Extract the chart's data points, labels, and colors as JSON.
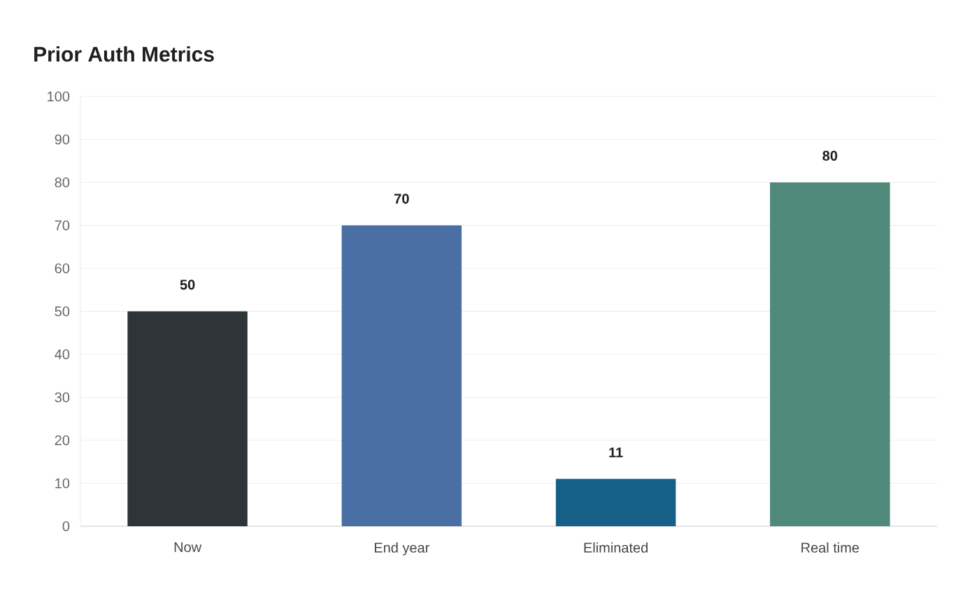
{
  "chart_data": {
    "type": "bar",
    "title": "Prior Auth Metrics",
    "categories": [
      "Now",
      "End year",
      "Eliminated",
      "Real time"
    ],
    "values": [
      50,
      70,
      11,
      80
    ],
    "colors": [
      "#2d3538",
      "#4a6fa5",
      "#166088",
      "#4f8a7a"
    ],
    "ylim": [
      0,
      100
    ],
    "yticks": [
      0,
      10,
      20,
      30,
      40,
      50,
      60,
      70,
      80,
      90,
      100
    ],
    "grid": "y",
    "data_labels": true
  }
}
